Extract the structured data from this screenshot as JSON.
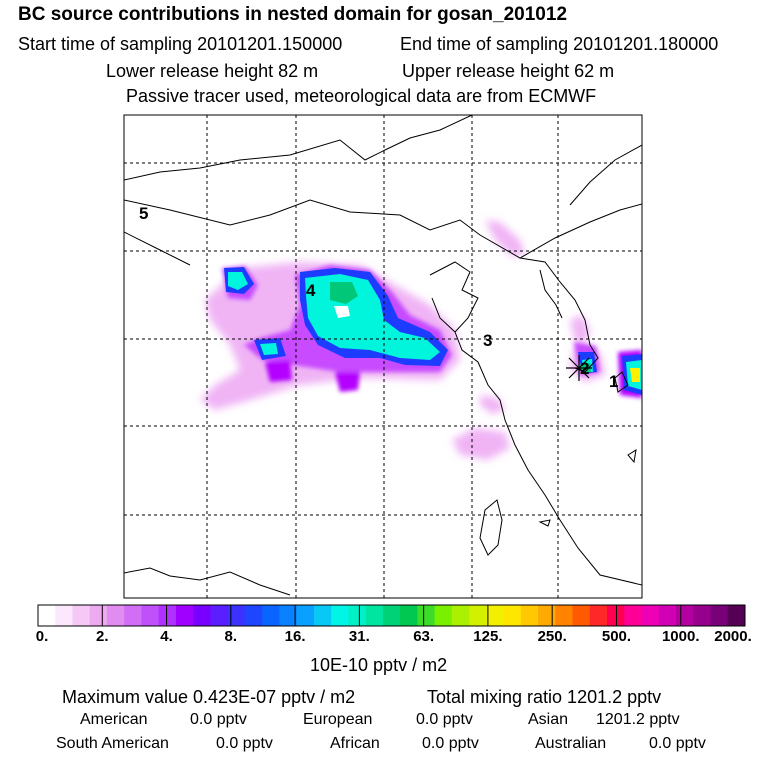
{
  "header": {
    "title": "BC  source contributions in nested domain for gosan_201012",
    "start_time": "Start time of sampling 20101201.150000",
    "end_time": "End time of sampling 20101201.180000",
    "lower_release": "Lower release height   82 m",
    "upper_release": "Upper release height   62 m",
    "tracer_note": "Passive tracer used, meteorological data are from ECMWF"
  },
  "map": {
    "region_labels": [
      "1",
      "2",
      "3",
      "4",
      "5"
    ],
    "colors": {
      "land_outline": "#000000",
      "grid": "#000000",
      "plume_light": "#f0b4f5",
      "plume_mid": "#b400ff",
      "plume_blue": "#1e3cff",
      "plume_cyan": "#00f5dc",
      "plume_green": "#00c85a",
      "plume_yellow": "#fff000"
    }
  },
  "colorbar": {
    "tick_labels": [
      "0.",
      "2.",
      "4.",
      "8.",
      "16.",
      "31.",
      "63.",
      "125.",
      "250.",
      "500.",
      "1000.",
      "2000."
    ],
    "unit_label": "10E-10 pptv / m2",
    "colors": [
      "#ffffff",
      "#fce8fc",
      "#f5c8f5",
      "#eeaaf0",
      "#e08cf0",
      "#d26ef5",
      "#c050fa",
      "#b030ff",
      "#a000ff",
      "#7800ff",
      "#5a1eff",
      "#3c32ff",
      "#1e46ff",
      "#0a64ff",
      "#0a82ff",
      "#0aa0ff",
      "#0ac8f5",
      "#00f5e6",
      "#00f0c8",
      "#00e6a0",
      "#00d278",
      "#00c850",
      "#3cdc28",
      "#78f000",
      "#aaf000",
      "#d2f000",
      "#f0f000",
      "#ffe600",
      "#ffc800",
      "#ffaa00",
      "#ff8200",
      "#ff5a00",
      "#ff2828",
      "#ff0050",
      "#ff0096",
      "#f000b4",
      "#d200b4",
      "#b400a0",
      "#96008c",
      "#780078",
      "#550055"
    ]
  },
  "footer": {
    "max_value": "Maximum value  0.423E-07 pptv / m2",
    "total_mixing": "Total mixing ratio     1201.2 pptv",
    "contributions_row1": [
      {
        "name": "American",
        "value": "0.0 pptv"
      },
      {
        "name": "European",
        "value": "0.0 pptv"
      },
      {
        "name": "Asian",
        "value": "1201.2 pptv"
      }
    ],
    "contributions_row2": [
      {
        "name": "South American",
        "value": "0.0 pptv"
      },
      {
        "name": "African",
        "value": "0.0 pptv"
      },
      {
        "name": "Australian",
        "value": "0.0 pptv"
      }
    ]
  }
}
